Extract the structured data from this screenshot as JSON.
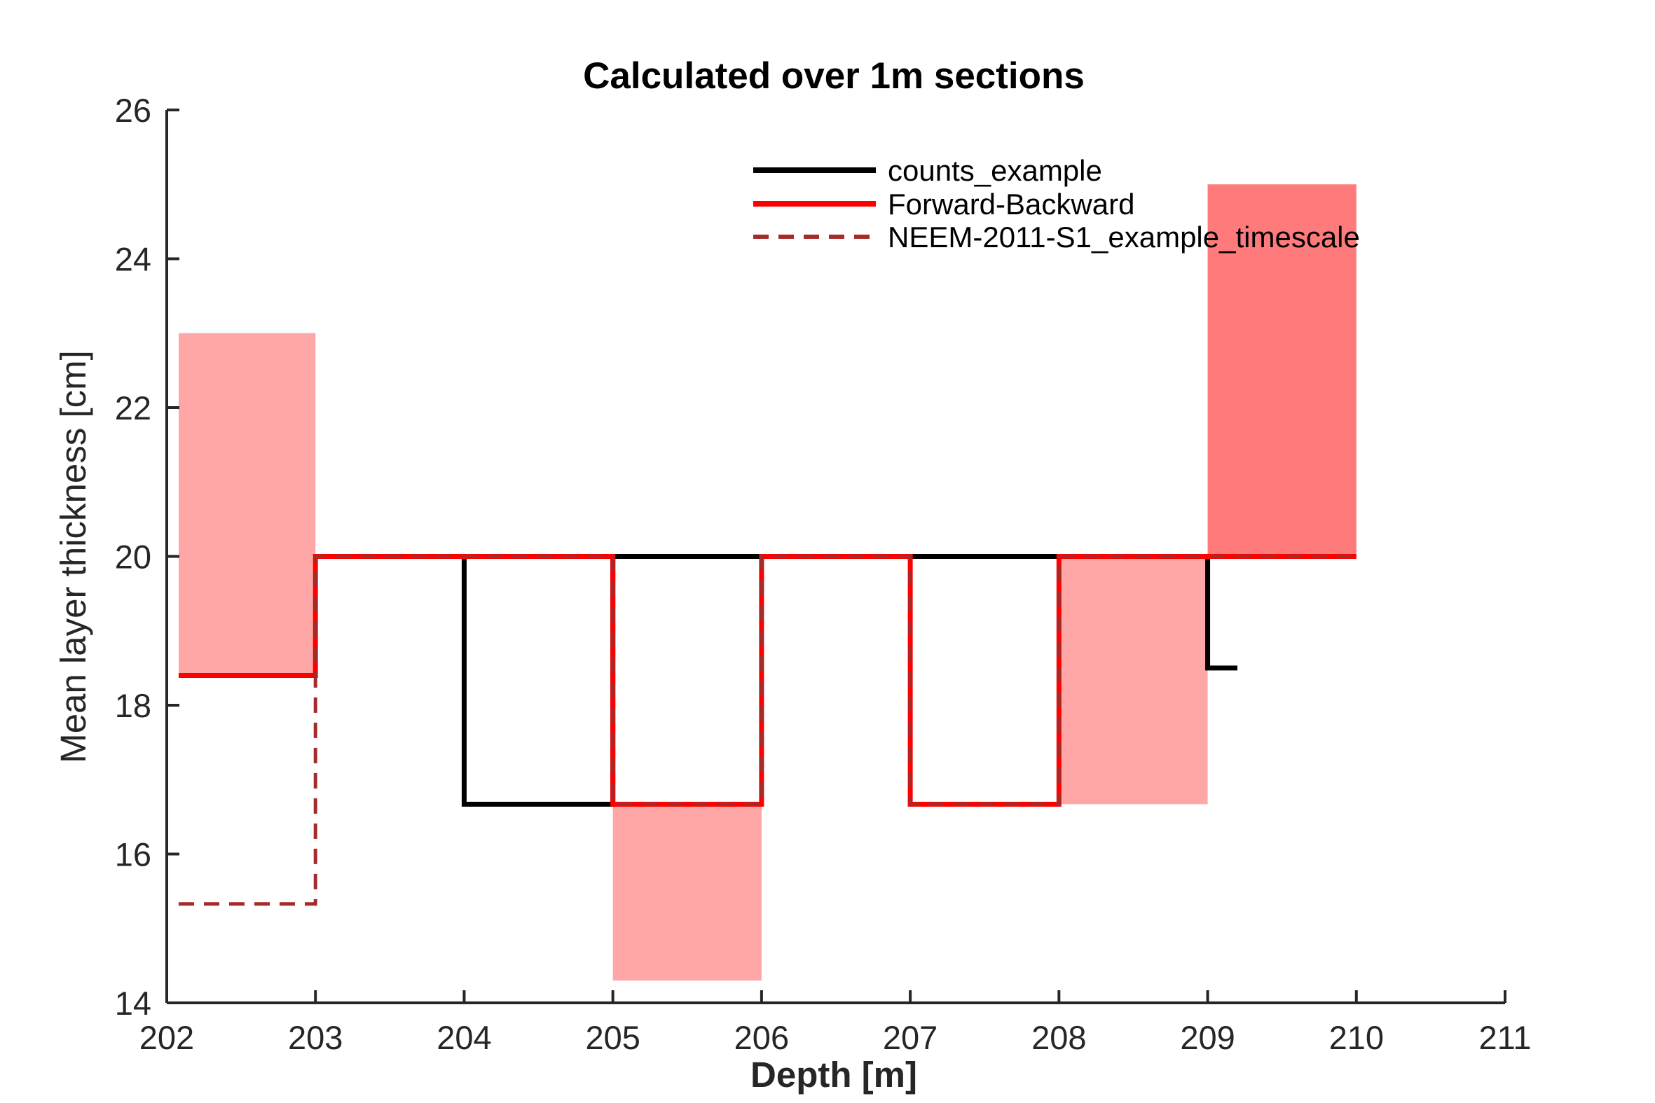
{
  "chart_data": {
    "type": "line",
    "title": "Calculated over 1m sections",
    "xlabel": "Depth [m]",
    "ylabel": "Mean layer thickness [cm]",
    "xlim": [
      202,
      211
    ],
    "ylim": [
      14,
      26
    ],
    "xticks": [
      "202",
      "203",
      "204",
      "205",
      "206",
      "207",
      "208",
      "209",
      "210",
      "211"
    ],
    "yticks": [
      "14",
      "16",
      "18",
      "20",
      "22",
      "24",
      "26"
    ],
    "grid": false,
    "legend_position": "top-right",
    "uncertainty_bands": [
      {
        "x": [
          202.08,
          203
        ],
        "y": [
          18.4,
          23.0
        ],
        "color": "#ffa6a6"
      },
      {
        "x": [
          205,
          206
        ],
        "y": [
          14.3,
          16.67
        ],
        "color": "#ffa6a6"
      },
      {
        "x": [
          208,
          209
        ],
        "y": [
          16.67,
          20.0
        ],
        "color": "#ffa6a6"
      },
      {
        "x": [
          209,
          210
        ],
        "y": [
          20.0,
          25.0
        ],
        "color": "#ff7a7a"
      }
    ],
    "series": [
      {
        "name": "counts_example",
        "color": "#000000",
        "style": "solid",
        "points": [
          [
            204,
            20
          ],
          [
            204,
            16.67
          ],
          [
            205,
            16.67
          ],
          [
            205,
            20
          ],
          [
            206,
            20
          ],
          [
            209,
            20
          ],
          [
            209,
            18.5
          ],
          [
            209.2,
            18.5
          ]
        ]
      },
      {
        "name": "Forward-Backward",
        "color": "#ff0000",
        "style": "solid",
        "points": [
          [
            202.08,
            18.4
          ],
          [
            203,
            18.4
          ],
          [
            203,
            20
          ],
          [
            205,
            20
          ],
          [
            205,
            16.67
          ],
          [
            206,
            16.67
          ],
          [
            206,
            20
          ],
          [
            207,
            20
          ],
          [
            207,
            16.67
          ],
          [
            208,
            16.67
          ],
          [
            208,
            20
          ],
          [
            210,
            20
          ]
        ]
      },
      {
        "name": "NEEM-2011-S1_example_timescale",
        "color": "#a52a2a",
        "style": "dashed",
        "points": [
          [
            202.08,
            15.33
          ],
          [
            203,
            15.33
          ],
          [
            203,
            20
          ],
          [
            205,
            20
          ],
          [
            205,
            16.67
          ],
          [
            206,
            16.67
          ],
          [
            206,
            20
          ],
          [
            207,
            20
          ],
          [
            207,
            16.67
          ],
          [
            208,
            16.67
          ],
          [
            208,
            20
          ],
          [
            210,
            20
          ]
        ]
      }
    ]
  }
}
